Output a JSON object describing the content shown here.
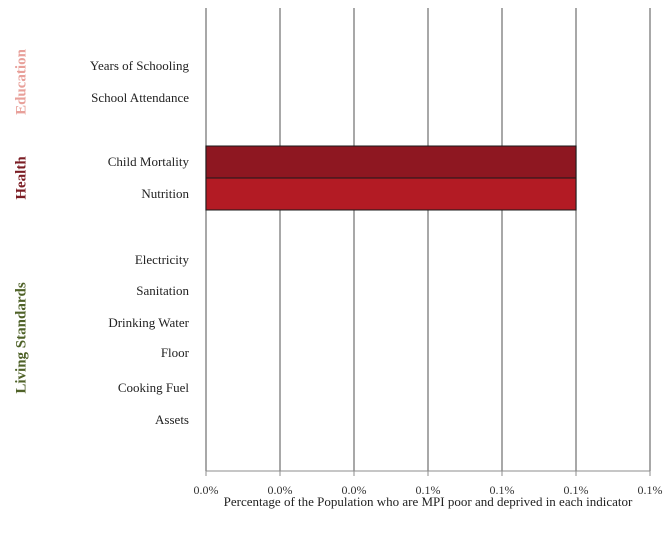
{
  "chart_data": {
    "type": "bar",
    "orientation": "horizontal",
    "title": "",
    "xlabel": "Percentage of the Population who are MPI poor and deprived in each indicator",
    "ylabel": "",
    "xlim": [
      0,
      0.0012
    ],
    "x_tick_labels": [
      "0.0%",
      "0.0%",
      "0.0%",
      "0.1%",
      "0.1%",
      "0.1%",
      "0.1%"
    ],
    "categories": [
      "Years of Schooling",
      "School Attendance",
      "Child Mortality",
      "Nutrition",
      "Electricity",
      "Sanitation",
      "Drinking Water",
      "Floor",
      "Cooking Fuel",
      "Assets"
    ],
    "values": [
      0,
      0,
      0.001,
      0.001,
      0,
      0,
      0,
      0,
      0,
      0
    ],
    "bar_colors": [
      "#8B1A1A",
      "#8B1A1A",
      "#8E1721",
      "#B31B24",
      "#8B1A1A",
      "#8B1A1A",
      "#8B1A1A",
      "#8B1A1A",
      "#8B1A1A",
      "#8B1A1A"
    ],
    "groups": [
      {
        "label": "Education",
        "color": "#E8A09A",
        "categories": [
          "Years of Schooling",
          "School Attendance"
        ]
      },
      {
        "label": "Health",
        "color": "#7B1D24",
        "categories": [
          "Child Mortality",
          "Nutrition"
        ]
      },
      {
        "label": "Living Standards",
        "color": "#4F6228",
        "categories": [
          "Electricity",
          "Sanitation",
          "Drinking Water",
          "Floor",
          "Cooking Fuel",
          "Assets"
        ]
      }
    ],
    "grid": true,
    "legend": "none"
  }
}
